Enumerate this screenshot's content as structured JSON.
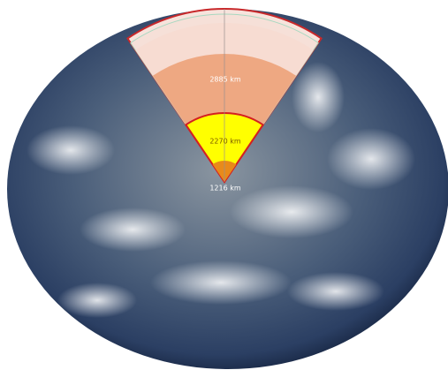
{
  "layers": [
    {
      "label": "2885 km"
    },
    {
      "label": "2270 km"
    },
    {
      "label": "1216 km"
    }
  ]
}
